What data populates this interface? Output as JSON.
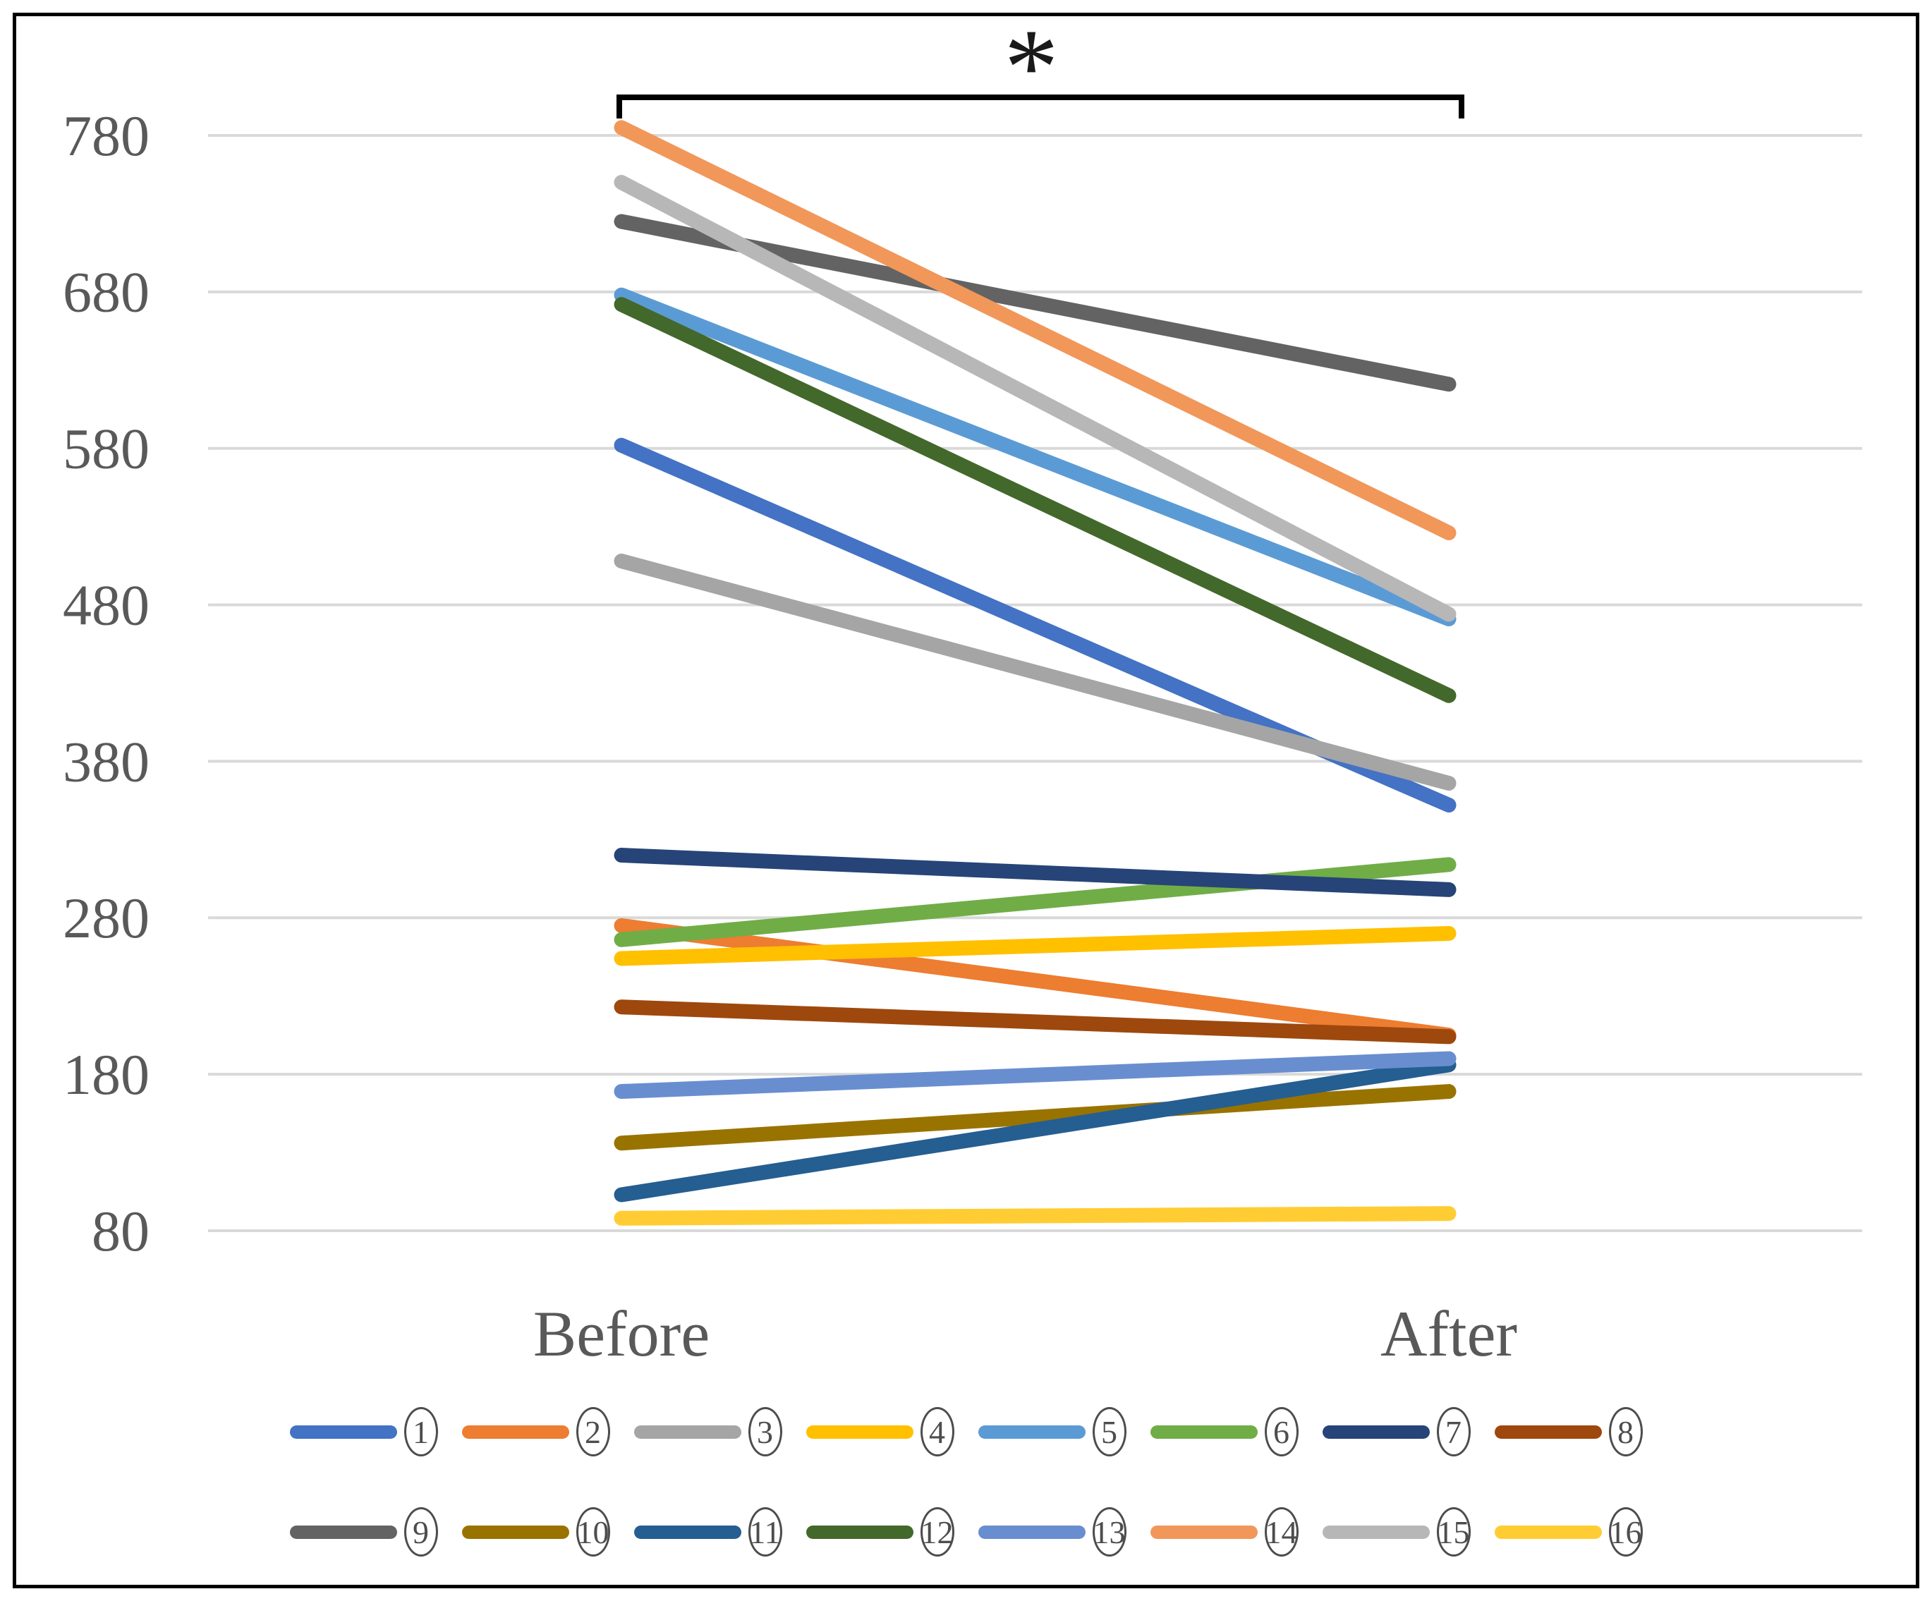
{
  "chart_data": {
    "type": "line",
    "subtype": "slope-before-after",
    "title": "",
    "xlabel": "",
    "ylabel": "",
    "categories": [
      "Before",
      "After"
    ],
    "y_ticks": [
      780,
      680,
      580,
      480,
      380,
      280,
      180,
      80
    ],
    "ylim": [
      80,
      780
    ],
    "grid": "horizontal",
    "gridline_color": "#D9D9D9",
    "axis_text_color": "#595959",
    "legend_position": "bottom-two-rows",
    "significance": {
      "label": "*",
      "from": "Before",
      "to": "After"
    },
    "series": [
      {
        "name": "1",
        "color": "#4472C4",
        "values": [
          582,
          352
        ]
      },
      {
        "name": "2",
        "color": "#ED7D31",
        "values": [
          275,
          205
        ]
      },
      {
        "name": "3",
        "color": "#A5A5A5",
        "values": [
          508,
          366
        ]
      },
      {
        "name": "4",
        "color": "#FFC000",
        "values": [
          254,
          270
        ]
      },
      {
        "name": "5",
        "color": "#5B9BD5",
        "values": [
          678,
          471
        ]
      },
      {
        "name": "6",
        "color": "#70AD47",
        "values": [
          266,
          314
        ]
      },
      {
        "name": "7",
        "color": "#264478",
        "values": [
          320,
          298
        ]
      },
      {
        "name": "8",
        "color": "#9E480E",
        "values": [
          223,
          204
        ]
      },
      {
        "name": "9",
        "color": "#636363",
        "values": [
          725,
          621
        ]
      },
      {
        "name": "10",
        "color": "#997300",
        "values": [
          136,
          169
        ]
      },
      {
        "name": "11",
        "color": "#255E91",
        "values": [
          103,
          186
        ]
      },
      {
        "name": "12",
        "color": "#43682B",
        "values": [
          672,
          422
        ]
      },
      {
        "name": "13",
        "color": "#698ED0",
        "values": [
          169,
          190
        ]
      },
      {
        "name": "14",
        "color": "#F1975A",
        "values": [
          785,
          526
        ]
      },
      {
        "name": "15",
        "color": "#B7B7B7",
        "values": [
          750,
          474
        ]
      },
      {
        "name": "16",
        "color": "#FFCD33",
        "values": [
          88,
          91
        ]
      }
    ],
    "legend_rows": [
      [
        "1",
        "2",
        "3",
        "4",
        "5",
        "6",
        "7",
        "8"
      ],
      [
        "9",
        "10",
        "11",
        "12",
        "13",
        "14",
        "15",
        "16"
      ]
    ]
  }
}
